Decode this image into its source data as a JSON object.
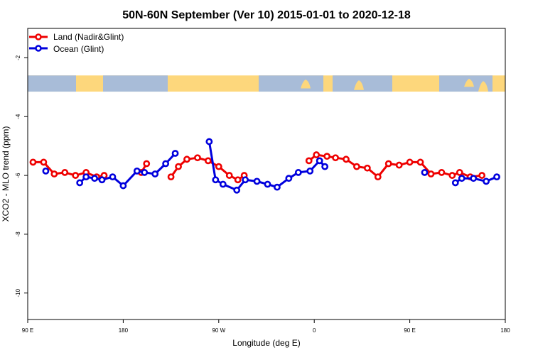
{
  "chart_data": {
    "type": "line",
    "title": "50N-60N September (Ver 10)   2015-01-01 to 2020-12-18",
    "xlabel": "Longitude (deg E)",
    "ylabel": "XCO2 - MLO trend (ppm)",
    "xlim": [
      90,
      540
    ],
    "ylim": [
      -10.9,
      -1.0
    ],
    "x_ticks": [
      {
        "value": 90,
        "label": "90 E"
      },
      {
        "value": 180,
        "label": "180"
      },
      {
        "value": 270,
        "label": "90 W"
      },
      {
        "value": 360,
        "label": "0"
      },
      {
        "value": 450,
        "label": "90 E"
      },
      {
        "value": 540,
        "label": "180"
      }
    ],
    "y_ticks": [
      {
        "value": -2,
        "label": "-2"
      },
      {
        "value": -4,
        "label": "-4"
      },
      {
        "value": -6,
        "label": "-6"
      },
      {
        "value": -8,
        "label": "-8"
      },
      {
        "value": -10,
        "label": "-10"
      }
    ],
    "map_strip": {
      "y_top": -2.6,
      "y_bottom": -3.15,
      "ocean_color": "#a8bcd8",
      "land_color": "#fdd77c"
    },
    "legend": {
      "position": "top-left"
    },
    "series": [
      {
        "name": "Land (Nadir&Glint)",
        "color": "#ee0000",
        "segments": [
          [
            [
              95,
              -5.55
            ],
            [
              105,
              -5.55
            ],
            [
              115,
              -5.95
            ],
            [
              125,
              -5.9
            ],
            [
              135,
              -6.0
            ],
            [
              145,
              -5.9
            ],
            [
              155,
              -6.05
            ],
            [
              162,
              -6.0
            ]
          ],
          [
            [
              197,
              -5.9
            ],
            [
              202,
              -5.6
            ]
          ],
          [
            [
              225,
              -6.05
            ],
            [
              232,
              -5.7
            ],
            [
              240,
              -5.45
            ],
            [
              250,
              -5.4
            ],
            [
              260,
              -5.5
            ],
            [
              270,
              -5.7
            ],
            [
              280,
              -6.0
            ],
            [
              288,
              -6.15
            ],
            [
              294,
              -6.0
            ]
          ],
          [
            [
              355,
              -5.5
            ],
            [
              362,
              -5.3
            ],
            [
              372,
              -5.35
            ],
            [
              380,
              -5.4
            ],
            [
              390,
              -5.45
            ],
            [
              400,
              -5.7
            ],
            [
              410,
              -5.75
            ],
            [
              420,
              -6.05
            ],
            [
              430,
              -5.6
            ],
            [
              440,
              -5.65
            ],
            [
              450,
              -5.55
            ],
            [
              460,
              -5.55
            ],
            [
              470,
              -5.95
            ],
            [
              480,
              -5.9
            ],
            [
              490,
              -6.0
            ],
            [
              497,
              -5.9
            ],
            [
              507,
              -6.05
            ],
            [
              518,
              -6.0
            ]
          ]
        ]
      },
      {
        "name": "Ocean (Glint)",
        "color": "#0000dd",
        "segments": [
          [
            [
              107,
              -5.85
            ]
          ],
          [
            [
              139,
              -6.25
            ],
            [
              145,
              -6.05
            ],
            [
              153,
              -6.1
            ],
            [
              160,
              -6.15
            ],
            [
              170,
              -6.05
            ],
            [
              180,
              -6.35
            ],
            [
              193,
              -5.85
            ],
            [
              200,
              -5.9
            ],
            [
              210,
              -5.95
            ],
            [
              220,
              -5.6
            ],
            [
              229,
              -5.25
            ]
          ],
          [
            [
              261,
              -4.85
            ],
            [
              267,
              -6.15
            ],
            [
              274,
              -6.3
            ],
            [
              287,
              -6.5
            ],
            [
              295,
              -6.15
            ],
            [
              306,
              -6.2
            ],
            [
              316,
              -6.3
            ],
            [
              325,
              -6.4
            ],
            [
              336,
              -6.1
            ],
            [
              345,
              -5.9
            ],
            [
              356,
              -5.85
            ],
            [
              365,
              -5.5
            ],
            [
              370,
              -5.7
            ]
          ],
          [
            [
              464,
              -5.9
            ]
          ],
          [
            [
              493,
              -6.25
            ],
            [
              499,
              -6.1
            ],
            [
              510,
              -6.1
            ],
            [
              522,
              -6.2
            ],
            [
              532,
              -6.05
            ]
          ]
        ]
      }
    ]
  }
}
